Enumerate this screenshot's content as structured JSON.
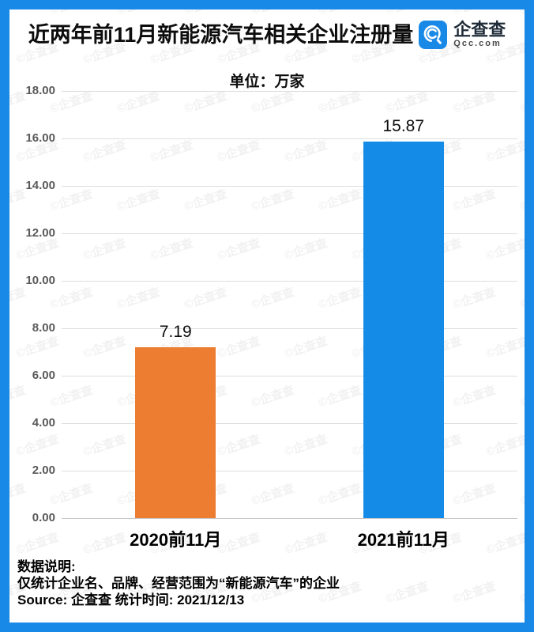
{
  "header": {
    "title": "近两年前11月新能源汽车相关企业注册量",
    "logo": {
      "brand": "企查查",
      "domain": "Qcc.com",
      "icon": "qcc-magnifier-icon"
    }
  },
  "chart_data": {
    "type": "bar",
    "title": "近两年前11月新能源汽车相关企业注册量",
    "unit_label": "单位：万家",
    "categories": [
      "2020前11月",
      "2021前11月"
    ],
    "values": [
      7.19,
      15.87
    ],
    "value_labels": [
      "7.19",
      "15.87"
    ],
    "bar_colors": [
      "#ED7D31",
      "#158BE8"
    ],
    "ylim": [
      0,
      18
    ],
    "ytick_step": 2,
    "yticks": [
      "18.00",
      "16.00",
      "14.00",
      "12.00",
      "10.00",
      "8.00",
      "6.00",
      "4.00",
      "2.00",
      "0.00"
    ],
    "grid": true,
    "legend": null,
    "xlabel": "",
    "ylabel": ""
  },
  "footer": {
    "note_title": "数据说明:",
    "note_line": "仅统计企业名、品牌、经营范围为“新能源汽车”的企业",
    "source_line": "Source: 企查查  统计时间: 2021/12/13"
  },
  "watermark": {
    "text": "©企查查"
  },
  "colors": {
    "frame_blue": "#1989E8",
    "bar_blue": "#158BE8",
    "bar_orange": "#ED7D31",
    "gridline": "#DDDDDD",
    "tick_text": "#595959"
  }
}
